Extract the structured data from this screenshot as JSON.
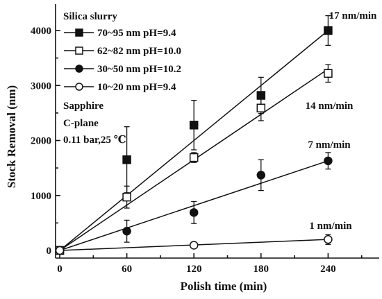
{
  "chart_data": {
    "type": "scatter",
    "xlabel": "Polish time (min)",
    "ylabel": "Stock Removal (nm)",
    "xlim": [
      0,
      275
    ],
    "ylim": [
      -50,
      4300
    ],
    "xticks": [
      0,
      60,
      120,
      180,
      240
    ],
    "yticks": [
      0,
      1000,
      2000,
      3000,
      4000
    ],
    "grid": false,
    "legend_title": "Silica slurry",
    "legend_position": "top-left",
    "notes": [
      "Sapphire",
      "C-plane",
      "0.11 bar,25 ℃"
    ],
    "series": [
      {
        "name": "70~95 nm pH=9.4",
        "marker": "filled-square",
        "x": [
          0,
          60,
          120,
          180,
          240
        ],
        "y": [
          0,
          1650,
          2280,
          2820,
          4000
        ],
        "err": [
          0,
          600,
          450,
          330,
          270
        ],
        "fit_end": 4000,
        "rate_label": "17 nm/min"
      },
      {
        "name": "62~82 nm pH=10.0",
        "marker": "open-square",
        "x": [
          0,
          60,
          120,
          180,
          240
        ],
        "y": [
          0,
          970,
          1690,
          2590,
          3220
        ],
        "err": [
          0,
          200,
          90,
          230,
          160
        ],
        "fit_end": 3300,
        "rate_label": "14 nm/min"
      },
      {
        "name": "30~50 nm pH=10.2",
        "marker": "filled-circle",
        "x": [
          0,
          60,
          120,
          180,
          240
        ],
        "y": [
          0,
          350,
          690,
          1370,
          1630
        ],
        "err": [
          0,
          200,
          200,
          280,
          150
        ],
        "fit_end": 1630,
        "rate_label": "7 nm/min"
      },
      {
        "name": "10~20 nm pH=9.4",
        "marker": "open-circle",
        "x": [
          0,
          120,
          240
        ],
        "y": [
          0,
          95,
          200
        ],
        "err": [
          0,
          50,
          90
        ],
        "fit_end": 200,
        "rate_label": "1 nm/min"
      }
    ]
  }
}
